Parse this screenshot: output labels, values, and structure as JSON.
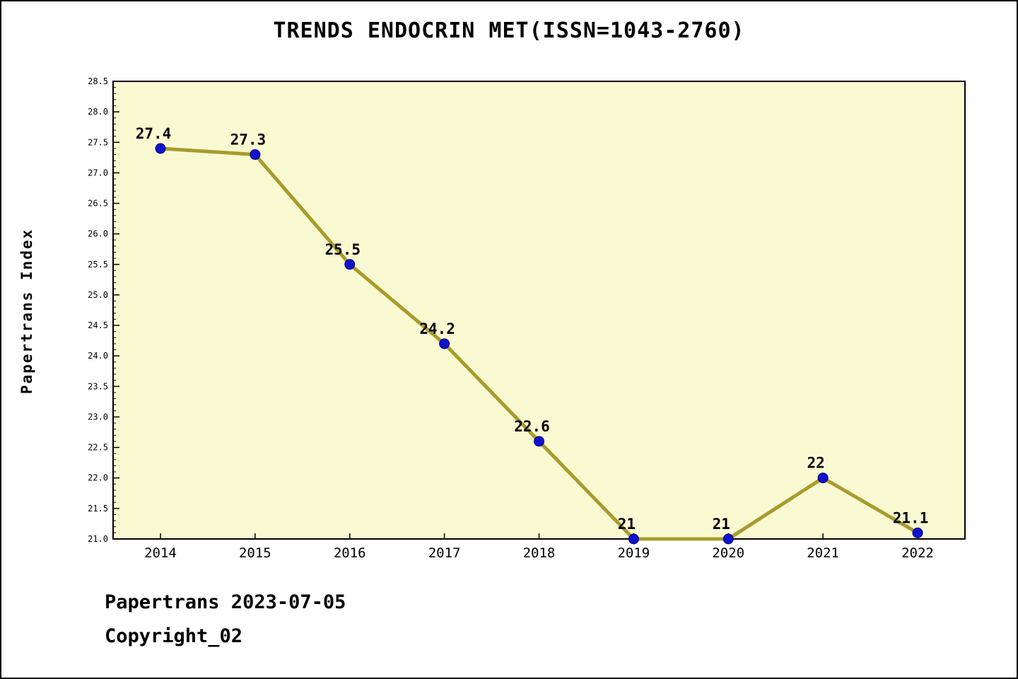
{
  "title": "TRENDS ENDOCRIN MET(ISSN=1043-2760)",
  "footer": {
    "line1": "Papertrans 2023-07-05",
    "line2": "Copyright_02"
  },
  "chart_data": {
    "type": "line",
    "title": "TRENDS ENDOCRIN MET(ISSN=1043-2760)",
    "xlabel": "",
    "ylabel": "Papertrans Index",
    "x": [
      2014,
      2015,
      2016,
      2017,
      2018,
      2019,
      2020,
      2021,
      2022
    ],
    "values": [
      27.4,
      27.3,
      25.5,
      24.2,
      22.6,
      21,
      21,
      22,
      21.1
    ],
    "point_labels": [
      "27.4",
      "27.3",
      "25.5",
      "24.2",
      "22.6",
      "21",
      "21",
      "22",
      "21.1"
    ],
    "ylim": [
      21.0,
      28.5
    ],
    "ytick_step": 0.5,
    "ytick_minor_step": 0.1,
    "grid": false,
    "legend": "none",
    "colors": {
      "line": "#A89B2D",
      "marker_fill": "#1111CC",
      "marker_edge": "#000080",
      "plot_bg": "#FAFAD2",
      "page_bg": "#FFFFFF",
      "axis": "#000000",
      "text": "#000000"
    }
  }
}
